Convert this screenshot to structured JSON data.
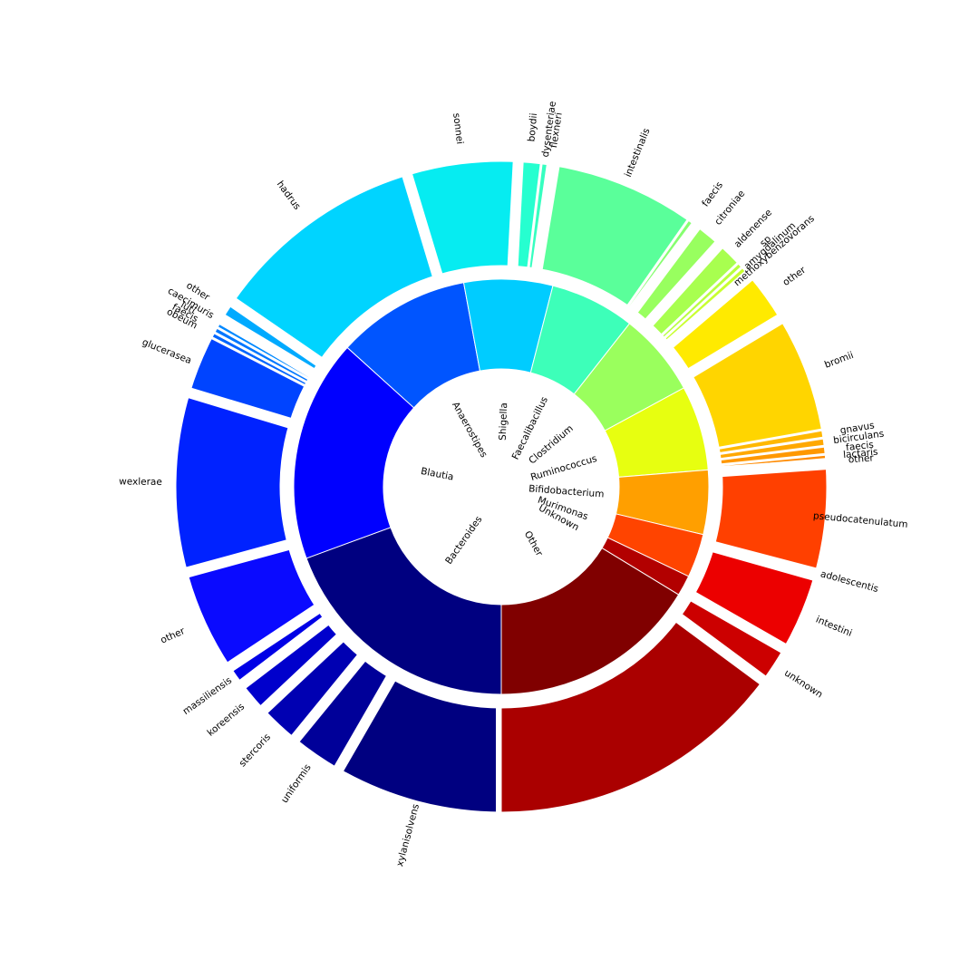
{
  "chart_data": {
    "type": "sunburst",
    "title": "",
    "inner_ring": [
      {
        "label": "Bacteroides",
        "value": 19.4,
        "color": "#000080"
      },
      {
        "label": "Blautia",
        "value": 17.3,
        "color": "#0000ff"
      },
      {
        "label": "Anaerostipes",
        "value": 10.4,
        "color": "#0055ff"
      },
      {
        "label": "Shigella",
        "value": 6.9,
        "color": "#00ccff"
      },
      {
        "label": "Faecalibacillus",
        "value": 6.6,
        "color": "#3dffb9"
      },
      {
        "label": "Clostridium",
        "value": 6.5,
        "color": "#9aff5d"
      },
      {
        "label": "Ruminococcus",
        "value": 6.6,
        "color": "#e7ff10"
      },
      {
        "label": "Bifidobacterium",
        "value": 5.0,
        "color": "#ff9f00"
      },
      {
        "label": "Murimonas",
        "value": 3.4,
        "color": "#ff4400"
      },
      {
        "label": "Unknown",
        "value": 1.6,
        "color": "#b20000"
      },
      {
        "label": "Other",
        "value": 16.3,
        "color": "#800000"
      }
    ],
    "outer_ring": [
      {
        "label": "xylanisolvens",
        "parent": "Bacteroides",
        "value": 10.3,
        "color": "#000080"
      },
      {
        "label": "uniformis",
        "parent": "Bacteroides",
        "value": 3.2,
        "color": "#000099"
      },
      {
        "label": "stercoris",
        "parent": "Bacteroides",
        "value": 2.6,
        "color": "#0000b2"
      },
      {
        "label": "koreensis",
        "parent": "Bacteroides",
        "value": 2.0,
        "color": "#0000cc"
      },
      {
        "label": "massiliensis",
        "parent": "Bacteroides",
        "value": 1.3,
        "color": "#0000e6"
      },
      {
        "label": "other",
        "parent": "Blautia",
        "value": 6.3,
        "color": "#0a0aff"
      },
      {
        "label": "wexlerae",
        "parent": "Blautia",
        "value": 11.0,
        "color": "#0022ff"
      },
      {
        "label": "glucerasea",
        "parent": "Anaerostipes",
        "value": 3.6,
        "color": "#0044ff"
      },
      {
        "label": "obeum",
        "parent": "Anaerostipes",
        "value": 0.35,
        "color": "#0066ff"
      },
      {
        "label": "faecis",
        "parent": "Anaerostipes",
        "value": 0.35,
        "color": "#0077ff"
      },
      {
        "label": "luti",
        "parent": "Anaerostipes",
        "value": 0.3,
        "color": "#0088ff"
      },
      {
        "label": "caecimuris",
        "parent": "Anaerostipes",
        "value": 0.3,
        "color": "#0099ff"
      },
      {
        "label": "other",
        "parent": "Anaerostipes",
        "value": 1.2,
        "color": "#00aaff"
      },
      {
        "label": "hadrus",
        "parent": "Anaerostipes",
        "value": 13.3,
        "color": "#00d4ff"
      },
      {
        "label": "sonnei",
        "parent": "Shigella",
        "value": 6.8,
        "color": "#06ecf1"
      },
      {
        "label": "boydii",
        "parent": "Shigella",
        "value": 1.4,
        "color": "#26ffd0"
      },
      {
        "label": "dysenteriae",
        "parent": "Shigella",
        "value": 0.4,
        "color": "#36ffc0"
      },
      {
        "label": "flexneri",
        "parent": "Shigella",
        "value": 0.4,
        "color": "#46ffb0"
      },
      {
        "label": "intestinalis",
        "parent": "Faecalibacillus",
        "value": 8.8,
        "color": "#5aff9a"
      },
      {
        "label": "faecis",
        "parent": "Faecalibacillus",
        "value": 0.6,
        "color": "#86ff70"
      },
      {
        "label": "citroniae",
        "parent": "Clostridium",
        "value": 1.8,
        "color": "#98ff5f"
      },
      {
        "label": "aldenense",
        "parent": "Clostridium",
        "value": 1.6,
        "color": "#a8ff4f"
      },
      {
        "label": "sp",
        "parent": "Clostridium",
        "value": 0.35,
        "color": "#b8ff3f"
      },
      {
        "label": "amygdalinum",
        "parent": "Clostridium",
        "value": 0.35,
        "color": "#c8ff2f"
      },
      {
        "label": "methoxybenzovorans",
        "parent": "Clostridium",
        "value": 0.35,
        "color": "#d8ff1f"
      },
      {
        "label": "other",
        "parent": "Ruminococcus",
        "value": 3.2,
        "color": "#ffea00"
      },
      {
        "label": "bromii",
        "parent": "Ruminococcus",
        "value": 7.2,
        "color": "#ffd500"
      },
      {
        "label": "gnavus",
        "parent": "Ruminococcus",
        "value": 0.5,
        "color": "#ffb800"
      },
      {
        "label": "bicirculans",
        "parent": "Ruminococcus",
        "value": 0.5,
        "color": "#ffa800"
      },
      {
        "label": "faecis",
        "parent": "Ruminococcus",
        "value": 0.5,
        "color": "#ff9800"
      },
      {
        "label": "lactaris",
        "parent": "Ruminococcus",
        "value": 0.3,
        "color": "#ff8a00"
      },
      {
        "label": "other",
        "parent": "Bifidobacterium",
        "value": 0.3,
        "color": "#ff7a00"
      },
      {
        "label": "pseudocatenulatum",
        "parent": "Bifidobacterium",
        "value": 6.4,
        "color": "#ff4000"
      },
      {
        "label": "adolescentis",
        "parent": "Bifidobacterium",
        "value": 0.4,
        "color": "#ff2800"
      },
      {
        "label": "intestini",
        "parent": "Murimonas",
        "value": 4.8,
        "color": "#ec0000"
      },
      {
        "label": "unknown",
        "parent": "Unknown",
        "value": 2.3,
        "color": "#cc0000"
      },
      {
        "label": "",
        "parent": "Other",
        "value": 18.4,
        "color": "#aa0000"
      }
    ]
  }
}
